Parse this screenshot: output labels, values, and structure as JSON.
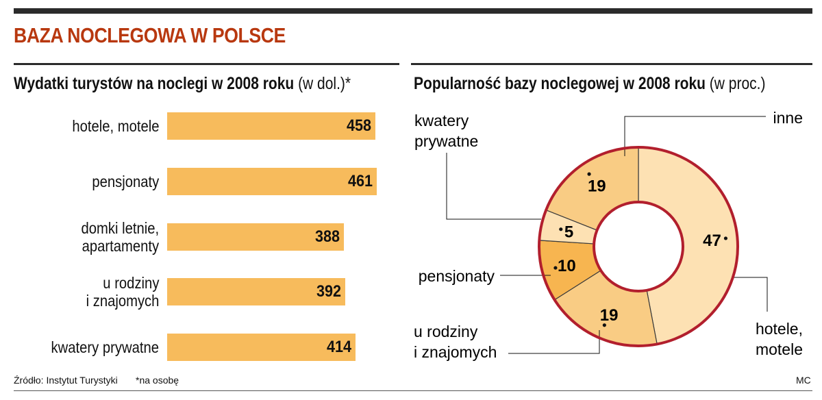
{
  "title": "BAZA NOCLEGOWA W POLSCE",
  "footer": {
    "source": "Źródło: Instytut Turystyki",
    "note": "*na osobę",
    "author": "MC"
  },
  "chart_data": [
    {
      "type": "bar",
      "title": "Wydatki turystów na noclegi w 2008 roku",
      "unit": "(w dol.)*",
      "categories": [
        "hotele, motele",
        "pensjonaty",
        "domki letnie,\napartamenty",
        "u rodziny\ni znajomych",
        "kwatery prywatne"
      ],
      "values": [
        458,
        461,
        388,
        392,
        414
      ],
      "orientation": "horizontal",
      "color": "#f7bb5c"
    },
    {
      "type": "pie",
      "title": "Popularność bazy noclegowej w 2008 roku",
      "unit": "(w proc.)",
      "donut": true,
      "slices": [
        {
          "label": "hotele,\nmotele",
          "value": 47,
          "color": "#fde1b3"
        },
        {
          "label": "u rodziny\ni znajomych",
          "value": 19,
          "color": "#f9cc84"
        },
        {
          "label": "pensjonaty",
          "value": 10,
          "color": "#f7b550"
        },
        {
          "label": "kwatery\nprywatne",
          "value": 5,
          "color": "#fde1b3"
        },
        {
          "label": "inne",
          "value": 19,
          "color": "#f9cc84"
        }
      ],
      "border_color": "#b21f2d"
    }
  ]
}
